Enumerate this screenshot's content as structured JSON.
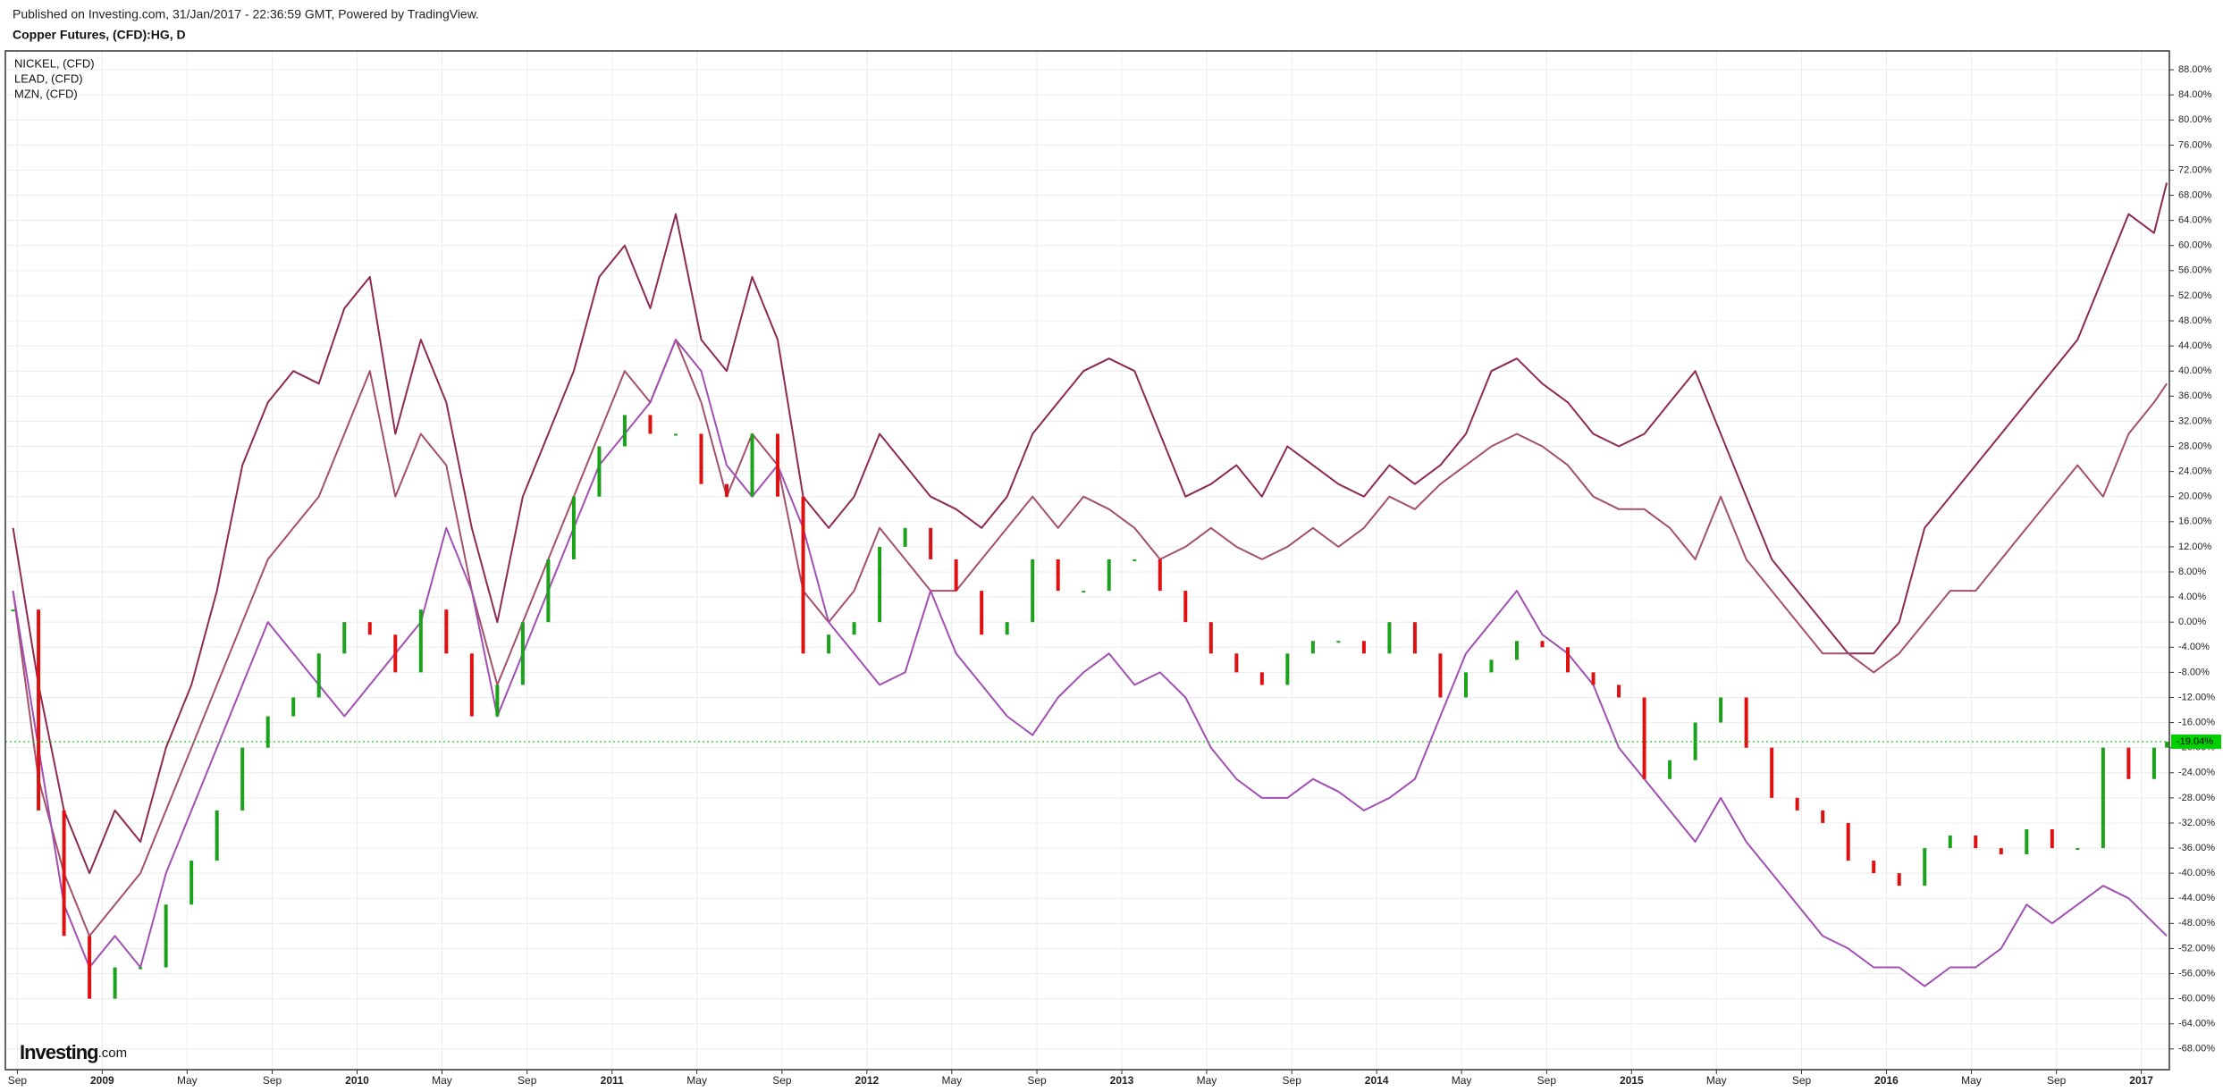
{
  "header": {
    "published": "Published on Investing.com, 31/Jan/2017 - 22:36:59 GMT, Powered by TradingView."
  },
  "logo": [
    "Investing",
    ".com"
  ],
  "chart_data": {
    "type": "line",
    "title": "Copper Futures, (CFD):HG, D",
    "x": [
      2008.65,
      2008.75,
      2008.85,
      2008.95,
      2009.05,
      2009.15,
      2009.25,
      2009.35,
      2009.45,
      2009.55,
      2009.65,
      2009.75,
      2009.85,
      2009.95,
      2010.05,
      2010.15,
      2010.25,
      2010.35,
      2010.45,
      2010.55,
      2010.65,
      2010.75,
      2010.85,
      2010.95,
      2011.05,
      2011.15,
      2011.25,
      2011.35,
      2011.45,
      2011.55,
      2011.65,
      2011.75,
      2011.85,
      2011.95,
      2012.05,
      2012.15,
      2012.25,
      2012.35,
      2012.45,
      2012.55,
      2012.65,
      2012.75,
      2012.85,
      2012.95,
      2013.05,
      2013.15,
      2013.25,
      2013.35,
      2013.45,
      2013.55,
      2013.65,
      2013.75,
      2013.85,
      2013.95,
      2014.05,
      2014.15,
      2014.25,
      2014.35,
      2014.45,
      2014.55,
      2014.65,
      2014.75,
      2014.85,
      2014.95,
      2015.05,
      2015.15,
      2015.25,
      2015.35,
      2015.45,
      2015.55,
      2015.65,
      2015.75,
      2015.85,
      2015.95,
      2016.05,
      2016.15,
      2016.25,
      2016.35,
      2016.45,
      2016.55,
      2016.65,
      2016.75,
      2016.85,
      2016.95,
      2017.05,
      2017.1
    ],
    "main_series": {
      "up_color": "#1aa31a",
      "down_color": "#e01010",
      "values": [
        2,
        -30,
        -50,
        -60,
        -55,
        -55,
        -45,
        -38,
        -30,
        -20,
        -15,
        -12,
        -5,
        0,
        -2,
        -8,
        2,
        -5,
        -15,
        -10,
        0,
        10,
        20,
        28,
        33,
        30,
        30,
        22,
        20,
        30,
        20,
        -5,
        -2,
        0,
        12,
        15,
        10,
        5,
        -2,
        0,
        10,
        5,
        5,
        10,
        10,
        5,
        0,
        -5,
        -8,
        -10,
        -5,
        -3,
        -3,
        -5,
        0,
        -5,
        -12,
        -8,
        -6,
        -3,
        -4,
        -8,
        -10,
        -12,
        -25,
        -22,
        -16,
        -12,
        -20,
        -28,
        -30,
        -32,
        -38,
        -40,
        -42,
        -36,
        -34,
        -36,
        -37,
        -33,
        -36,
        -36,
        -20,
        -25,
        -20,
        -19.04
      ]
    },
    "series": [
      {
        "name": "NICKEL,  (CFD)",
        "color": "#8e2a52",
        "values": [
          15,
          -10,
          -30,
          -40,
          -30,
          -35,
          -20,
          -10,
          5,
          25,
          35,
          40,
          38,
          50,
          55,
          30,
          45,
          35,
          15,
          0,
          20,
          30,
          40,
          55,
          60,
          50,
          65,
          45,
          40,
          55,
          45,
          20,
          15,
          20,
          30,
          25,
          20,
          18,
          15,
          20,
          30,
          35,
          40,
          42,
          40,
          30,
          20,
          22,
          25,
          20,
          28,
          25,
          22,
          20,
          25,
          22,
          25,
          30,
          40,
          42,
          38,
          35,
          30,
          28,
          30,
          35,
          40,
          30,
          20,
          10,
          5,
          0,
          -5,
          -5,
          0,
          15,
          20,
          25,
          30,
          35,
          40,
          45,
          55,
          65,
          62,
          70
        ]
      },
      {
        "name": "LEAD,  (CFD)",
        "color": "#a4506c",
        "values": [
          5,
          -25,
          -40,
          -50,
          -45,
          -40,
          -30,
          -20,
          -10,
          0,
          10,
          15,
          20,
          30,
          40,
          20,
          30,
          25,
          5,
          -10,
          0,
          10,
          20,
          30,
          40,
          35,
          45,
          35,
          20,
          30,
          25,
          5,
          0,
          5,
          15,
          10,
          5,
          5,
          10,
          15,
          20,
          15,
          20,
          18,
          15,
          10,
          12,
          15,
          12,
          10,
          12,
          15,
          12,
          15,
          20,
          18,
          22,
          25,
          28,
          30,
          28,
          25,
          20,
          18,
          18,
          15,
          10,
          20,
          10,
          5,
          0,
          -5,
          -5,
          -8,
          -5,
          0,
          5,
          5,
          10,
          15,
          20,
          25,
          20,
          30,
          35,
          38
        ]
      },
      {
        "name": "MZN,  (CFD)",
        "color": "#a24fb4",
        "values": [
          5,
          -20,
          -45,
          -55,
          -50,
          -55,
          -40,
          -30,
          -20,
          -10,
          0,
          -5,
          -10,
          -15,
          -10,
          -5,
          0,
          15,
          5,
          -15,
          -5,
          5,
          15,
          25,
          30,
          35,
          45,
          40,
          25,
          20,
          25,
          15,
          0,
          -5,
          -10,
          -8,
          5,
          -5,
          -10,
          -15,
          -18,
          -12,
          -8,
          -5,
          -10,
          -8,
          -12,
          -20,
          -25,
          -28,
          -28,
          -25,
          -27,
          -30,
          -28,
          -25,
          -15,
          -5,
          0,
          5,
          -2,
          -5,
          -10,
          -20,
          -25,
          -30,
          -35,
          -28,
          -35,
          -40,
          -45,
          -50,
          -52,
          -55,
          -55,
          -58,
          -55,
          -55,
          -52,
          -45,
          -48,
          -45,
          -42,
          -44,
          -48,
          -50
        ]
      }
    ],
    "last_value": {
      "value": -19.04,
      "label": "-19.04%",
      "color": "#00d000"
    },
    "xlim": [
      2008.62,
      2017.11
    ],
    "xticks": [
      {
        "value": 2008.667,
        "label": "Sep"
      },
      2009,
      {
        "value": 2009.333,
        "label": "May"
      },
      {
        "value": 2009.667,
        "label": "Sep"
      },
      2010,
      {
        "value": 2010.333,
        "label": "May"
      },
      {
        "value": 2010.667,
        "label": "Sep"
      },
      2011,
      {
        "value": 2011.333,
        "label": "May"
      },
      {
        "value": 2011.667,
        "label": "Sep"
      },
      2012,
      {
        "value": 2012.333,
        "label": "May"
      },
      {
        "value": 2012.667,
        "label": "Sep"
      },
      2013,
      {
        "value": 2013.333,
        "label": "May"
      },
      {
        "value": 2013.667,
        "label": "Sep"
      },
      2014,
      {
        "value": 2014.333,
        "label": "May"
      },
      {
        "value": 2014.667,
        "label": "Sep"
      },
      2015,
      {
        "value": 2015.333,
        "label": "May"
      },
      {
        "value": 2015.667,
        "label": "Sep"
      },
      2016,
      {
        "value": 2016.333,
        "label": "May"
      },
      {
        "value": 2016.667,
        "label": "Sep"
      },
      2017
    ],
    "ylim": [
      -71.3,
      91.0
    ],
    "yticks": [
      {
        "value": 88,
        "label": "88.00%"
      },
      {
        "value": 84,
        "label": "84.00%"
      },
      {
        "value": 80,
        "label": "80.00%"
      },
      {
        "value": 76,
        "label": "76.00%"
      },
      {
        "value": 72,
        "label": "72.00%"
      },
      {
        "value": 68,
        "label": "68.00%"
      },
      {
        "value": 64,
        "label": "64.00%"
      },
      {
        "value": 60,
        "label": "60.00%"
      },
      {
        "value": 56,
        "label": "56.00%"
      },
      {
        "value": 52,
        "label": "52.00%"
      },
      {
        "value": 48,
        "label": "48.00%"
      },
      {
        "value": 44,
        "label": "44.00%"
      },
      {
        "value": 40,
        "label": "40.00%"
      },
      {
        "value": 36,
        "label": "36.00%"
      },
      {
        "value": 32,
        "label": "32.00%"
      },
      {
        "value": 28,
        "label": "28.00%"
      },
      {
        "value": 24,
        "label": "24.00%"
      },
      {
        "value": 20,
        "label": "20.00%"
      },
      {
        "value": 16,
        "label": "16.00%"
      },
      {
        "value": 12,
        "label": "12.00%"
      },
      {
        "value": 8,
        "label": "8.00%"
      },
      {
        "value": 4,
        "label": "4.00%"
      },
      {
        "value": 0,
        "label": "0.00%"
      },
      {
        "value": -4,
        "label": "-4.00%"
      },
      {
        "value": -8,
        "label": "-8.00%"
      },
      {
        "value": -12,
        "label": "-12.00%"
      },
      {
        "value": -16,
        "label": "-16.00%"
      },
      {
        "value": -20,
        "label": "-20.00%"
      },
      {
        "value": -24,
        "label": "-24.00%"
      },
      {
        "value": -28,
        "label": "-28.00%"
      },
      {
        "value": -32,
        "label": "-32.00%"
      },
      {
        "value": -36,
        "label": "-36.00%"
      },
      {
        "value": -40,
        "label": "-40.00%"
      },
      {
        "value": -44,
        "label": "-44.00%"
      },
      {
        "value": -48,
        "label": "-48.00%"
      },
      {
        "value": -52,
        "label": "-52.00%"
      },
      {
        "value": -56,
        "label": "-56.00%"
      },
      {
        "value": -60,
        "label": "-60.00%"
      },
      {
        "value": -64,
        "label": "-64.00%"
      },
      {
        "value": -68,
        "label": "-68.00%"
      }
    ],
    "grid": true,
    "legend": "top-left"
  }
}
